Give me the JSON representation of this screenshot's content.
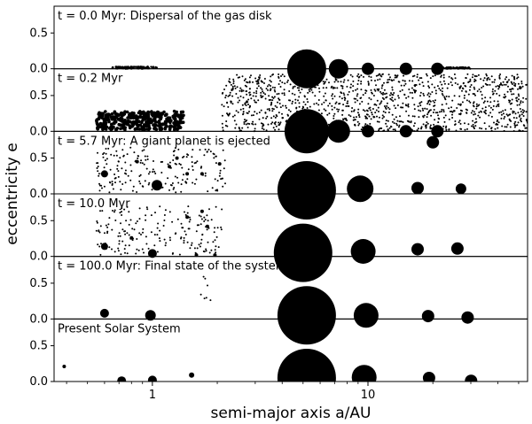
{
  "chart_data": {
    "type": "scatter",
    "xlabel": "semi-major axis a/AU",
    "ylabel": "eccentricity e",
    "x_scale": "log",
    "xlim": [
      0.35,
      55
    ],
    "x_ticks": [
      {
        "value": 1,
        "label": "1"
      },
      {
        "value": 10,
        "label": "10"
      }
    ],
    "ylim": [
      0,
      0.8
    ],
    "y_ticks": [
      {
        "value": 0.0,
        "label": "0.0"
      },
      {
        "value": 0.5,
        "label": "0.5"
      }
    ],
    "grid": false,
    "marker_color": "#000000",
    "panels": [
      {
        "label": "t = 0.0 Myr: Dispersal of the gas disk",
        "debris": [
          {
            "a_min": 0.65,
            "a_max": 1.05,
            "e_max": 0.03,
            "count": 90,
            "size": 1.2
          },
          {
            "a_min": 22.0,
            "a_max": 30.0,
            "e_max": 0.02,
            "count": 60,
            "size": 1.2
          }
        ],
        "bodies": [
          {
            "a": 5.2,
            "e": 0.0,
            "r": 22
          },
          {
            "a": 7.3,
            "e": 0.0,
            "r": 11
          },
          {
            "a": 10.0,
            "e": 0.0,
            "r": 7
          },
          {
            "a": 15.0,
            "e": 0.0,
            "r": 7
          },
          {
            "a": 21.0,
            "e": 0.0,
            "r": 7
          }
        ]
      },
      {
        "label": "t = 0.2 Myr",
        "debris": [
          {
            "a_min": 0.55,
            "a_max": 1.4,
            "e_min": 0.02,
            "e_max": 0.28,
            "count": 380,
            "size": 1.8
          },
          {
            "a_min": 2.1,
            "a_max": 55,
            "e_min": 0.0,
            "e_max": 0.8,
            "count": 1300,
            "size": 1.0
          }
        ],
        "bodies": [
          {
            "a": 5.2,
            "e": 0.0,
            "r": 25
          },
          {
            "a": 7.3,
            "e": 0.0,
            "r": 13
          },
          {
            "a": 10.0,
            "e": 0.0,
            "r": 7
          },
          {
            "a": 15.0,
            "e": 0.0,
            "r": 7
          },
          {
            "a": 21.0,
            "e": 0.0,
            "r": 7
          }
        ]
      },
      {
        "label": "t = 5.7 Myr: A giant planet is ejected",
        "debris": [
          {
            "a_min": 0.55,
            "a_max": 2.2,
            "e_min": 0.02,
            "e_max": 0.65,
            "count": 200,
            "size": 1.0
          }
        ],
        "bodies": [
          {
            "a": 5.2,
            "e": 0.05,
            "r": 33
          },
          {
            "a": 9.2,
            "e": 0.07,
            "r": 15
          },
          {
            "a": 17.0,
            "e": 0.08,
            "r": 7
          },
          {
            "a": 27.0,
            "e": 0.07,
            "r": 6
          },
          {
            "a": 20.0,
            "e": 0.72,
            "r": 7
          },
          {
            "a": 0.6,
            "e": 0.28,
            "r": 4
          },
          {
            "a": 1.05,
            "e": 0.12,
            "r": 6
          },
          {
            "a": 0.85,
            "e": 0.45,
            "r": 2
          },
          {
            "a": 1.2,
            "e": 0.38,
            "r": 2
          },
          {
            "a": 1.3,
            "e": 0.5,
            "r": 2
          },
          {
            "a": 1.7,
            "e": 0.28,
            "r": 2
          },
          {
            "a": 1.45,
            "e": 0.28,
            "r": 2
          },
          {
            "a": 2.05,
            "e": 0.42,
            "r": 2
          }
        ]
      },
      {
        "label": "t = 10.0 Myr",
        "debris": [
          {
            "a_min": 0.55,
            "a_max": 2.1,
            "e_min": 0.02,
            "e_max": 0.7,
            "count": 190,
            "size": 1.0
          }
        ],
        "bodies": [
          {
            "a": 5.0,
            "e": 0.05,
            "r": 33
          },
          {
            "a": 9.5,
            "e": 0.07,
            "r": 14
          },
          {
            "a": 17.0,
            "e": 0.1,
            "r": 7
          },
          {
            "a": 26.0,
            "e": 0.11,
            "r": 7
          },
          {
            "a": 0.6,
            "e": 0.14,
            "r": 4
          },
          {
            "a": 1.0,
            "e": 0.04,
            "r": 5
          },
          {
            "a": 0.8,
            "e": 0.26,
            "r": 2
          },
          {
            "a": 1.7,
            "e": 0.63,
            "r": 2
          },
          {
            "a": 1.45,
            "e": 0.55,
            "r": 2
          },
          {
            "a": 1.8,
            "e": 0.42,
            "r": 2
          },
          {
            "a": 1.6,
            "e": 0.02,
            "r": 2
          },
          {
            "a": 1.95,
            "e": 0.02,
            "r": 2
          }
        ]
      },
      {
        "label": "t = 100.0 Myr: Final state of the system",
        "debris": [
          {
            "a_min": 1.6,
            "a_max": 2.1,
            "e_min": 0.25,
            "e_max": 0.6,
            "count": 7,
            "size": 1.0
          }
        ],
        "bodies": [
          {
            "a": 5.2,
            "e": 0.05,
            "r": 33
          },
          {
            "a": 9.8,
            "e": 0.05,
            "r": 14
          },
          {
            "a": 19.0,
            "e": 0.04,
            "r": 7
          },
          {
            "a": 29.0,
            "e": 0.02,
            "r": 7
          },
          {
            "a": 0.6,
            "e": 0.08,
            "r": 5
          },
          {
            "a": 0.98,
            "e": 0.05,
            "r": 6
          }
        ]
      },
      {
        "label": "Present Solar System",
        "debris": [],
        "bodies": [
          {
            "a": 5.2,
            "e": 0.05,
            "r": 33
          },
          {
            "a": 9.6,
            "e": 0.06,
            "r": 14
          },
          {
            "a": 19.2,
            "e": 0.05,
            "r": 7
          },
          {
            "a": 30.1,
            "e": 0.01,
            "r": 7
          },
          {
            "a": 0.39,
            "e": 0.21,
            "r": 2
          },
          {
            "a": 0.72,
            "e": 0.01,
            "r": 5
          },
          {
            "a": 1.0,
            "e": 0.02,
            "r": 5
          },
          {
            "a": 1.52,
            "e": 0.09,
            "r": 3
          }
        ]
      }
    ]
  }
}
